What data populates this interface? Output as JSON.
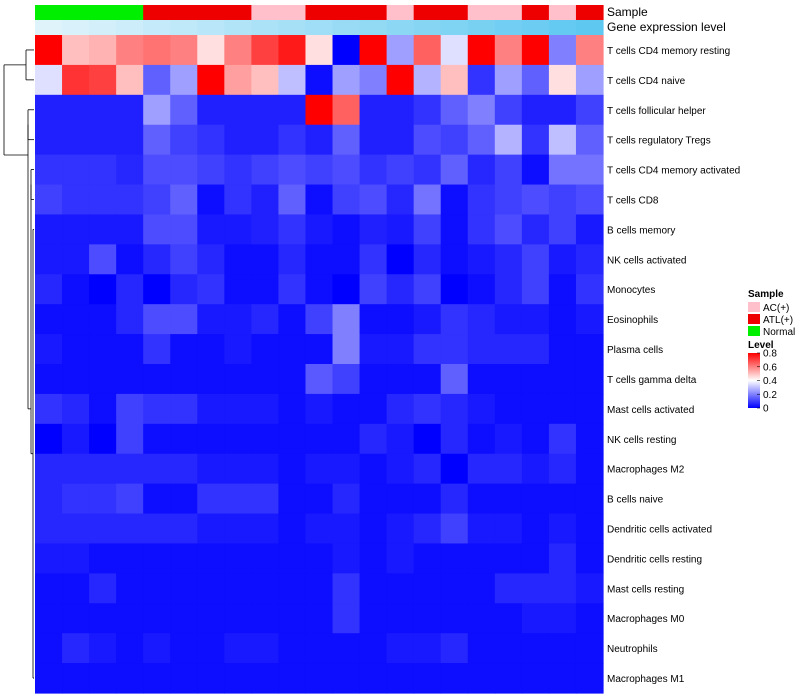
{
  "chart_data": {
    "type": "heatmap",
    "title": "",
    "colors": {
      "low": "#0000ff",
      "mid": "#ffffff",
      "high": "#ff0000",
      "sample": {
        "AC(+)": "#ffc0cb",
        "ATL(+)": "#ee0000",
        "Normal": "#00ee00"
      },
      "expr_low": "#dff3fb",
      "expr_high": "#5fc8f0"
    },
    "column_annotations": [
      {
        "name": "Sample",
        "values": [
          "Normal",
          "Normal",
          "Normal",
          "Normal",
          "ATL(+)",
          "ATL(+)",
          "ATL(+)",
          "ATL(+)",
          "AC(+)",
          "AC(+)",
          "ATL(+)",
          "ATL(+)",
          "ATL(+)",
          "AC(+)",
          "ATL(+)",
          "ATL(+)",
          "AC(+)",
          "AC(+)",
          "ATL(+)",
          "AC(+)",
          "ATL(+)"
        ]
      },
      {
        "name": "Gene expression level",
        "values": [
          0.0,
          0.05,
          0.1,
          0.15,
          0.2,
          0.25,
          0.3,
          0.35,
          0.4,
          0.45,
          0.5,
          0.55,
          0.6,
          0.65,
          0.7,
          0.75,
          0.8,
          0.85,
          0.9,
          0.95,
          1.0
        ]
      }
    ],
    "rows": [
      "T cells CD4 memory resting",
      "T cells CD4 naive",
      "T cells follicular helper",
      "T cells regulatory  Tregs",
      "T cells CD4 memory activated",
      "T cells CD8",
      "B cells memory",
      "NK cells activated",
      "Monocytes",
      "Eosinophils",
      "Plasma cells",
      "T cells gamma delta",
      "Mast cells activated",
      "NK cells resting",
      "Macrophages M2",
      "B cells naive",
      "Dendritic cells activated",
      "Dendritic cells resting",
      "Mast cells resting",
      "Macrophages M0",
      "Neutrophils",
      "Macrophages M1"
    ],
    "values": [
      [
        0.8,
        0.5,
        0.52,
        0.6,
        0.62,
        0.6,
        0.45,
        0.6,
        0.7,
        0.76,
        0.45,
        0.0,
        0.8,
        0.25,
        0.65,
        0.35,
        0.8,
        0.6,
        0.8,
        0.2,
        0.6
      ],
      [
        0.35,
        0.72,
        0.7,
        0.5,
        0.15,
        0.25,
        0.8,
        0.55,
        0.5,
        0.3,
        0.02,
        0.25,
        0.2,
        0.8,
        0.28,
        0.5,
        0.08,
        0.25,
        0.15,
        0.45,
        0.25
      ],
      [
        0.05,
        0.05,
        0.05,
        0.05,
        0.25,
        0.15,
        0.05,
        0.05,
        0.05,
        0.05,
        0.8,
        0.65,
        0.05,
        0.05,
        0.08,
        0.15,
        0.2,
        0.1,
        0.05,
        0.05,
        0.1
      ],
      [
        0.05,
        0.05,
        0.05,
        0.05,
        0.15,
        0.1,
        0.08,
        0.05,
        0.05,
        0.08,
        0.05,
        0.15,
        0.05,
        0.05,
        0.12,
        0.1,
        0.15,
        0.28,
        0.08,
        0.3,
        0.15
      ],
      [
        0.08,
        0.08,
        0.08,
        0.06,
        0.12,
        0.12,
        0.1,
        0.08,
        0.1,
        0.12,
        0.1,
        0.12,
        0.08,
        0.1,
        0.08,
        0.15,
        0.06,
        0.1,
        0.02,
        0.18,
        0.18
      ],
      [
        0.1,
        0.08,
        0.08,
        0.08,
        0.1,
        0.15,
        0.02,
        0.08,
        0.05,
        0.15,
        0.02,
        0.1,
        0.12,
        0.06,
        0.18,
        0.02,
        0.08,
        0.1,
        0.12,
        0.1,
        0.12
      ],
      [
        0.04,
        0.04,
        0.04,
        0.04,
        0.12,
        0.12,
        0.04,
        0.04,
        0.05,
        0.08,
        0.04,
        0.02,
        0.05,
        0.04,
        0.1,
        0.02,
        0.08,
        0.12,
        0.06,
        0.1,
        0.04
      ],
      [
        0.04,
        0.04,
        0.12,
        0.02,
        0.06,
        0.1,
        0.06,
        0.02,
        0.02,
        0.06,
        0.02,
        0.02,
        0.08,
        0.0,
        0.06,
        0.02,
        0.04,
        0.06,
        0.1,
        0.04,
        0.06
      ],
      [
        0.06,
        0.02,
        0.0,
        0.06,
        0.0,
        0.06,
        0.08,
        0.02,
        0.02,
        0.08,
        0.02,
        0.0,
        0.1,
        0.06,
        0.1,
        0.0,
        0.02,
        0.06,
        0.1,
        0.02,
        0.08
      ],
      [
        0.02,
        0.02,
        0.02,
        0.06,
        0.12,
        0.12,
        0.04,
        0.04,
        0.06,
        0.02,
        0.1,
        0.2,
        0.02,
        0.02,
        0.04,
        0.08,
        0.06,
        0.04,
        0.04,
        0.02,
        0.04
      ],
      [
        0.04,
        0.02,
        0.02,
        0.02,
        0.08,
        0.02,
        0.02,
        0.04,
        0.02,
        0.02,
        0.02,
        0.2,
        0.04,
        0.04,
        0.08,
        0.08,
        0.06,
        0.06,
        0.06,
        0.02,
        0.02
      ],
      [
        0.02,
        0.02,
        0.02,
        0.02,
        0.02,
        0.02,
        0.02,
        0.02,
        0.02,
        0.02,
        0.14,
        0.1,
        0.02,
        0.02,
        0.02,
        0.15,
        0.02,
        0.02,
        0.02,
        0.02,
        0.02
      ],
      [
        0.08,
        0.06,
        0.02,
        0.1,
        0.08,
        0.08,
        0.04,
        0.04,
        0.04,
        0.02,
        0.04,
        0.02,
        0.02,
        0.06,
        0.08,
        0.06,
        0.04,
        0.02,
        0.02,
        0.02,
        0.02
      ],
      [
        0.0,
        0.04,
        0.0,
        0.1,
        0.02,
        0.02,
        0.02,
        0.02,
        0.02,
        0.02,
        0.02,
        0.02,
        0.06,
        0.04,
        0.0,
        0.06,
        0.02,
        0.04,
        0.02,
        0.08,
        0.02
      ],
      [
        0.06,
        0.06,
        0.06,
        0.06,
        0.06,
        0.06,
        0.04,
        0.04,
        0.04,
        0.02,
        0.04,
        0.04,
        0.02,
        0.04,
        0.06,
        0.0,
        0.06,
        0.06,
        0.04,
        0.06,
        0.02
      ],
      [
        0.06,
        0.08,
        0.08,
        0.1,
        0.02,
        0.02,
        0.08,
        0.08,
        0.08,
        0.02,
        0.02,
        0.06,
        0.02,
        0.02,
        0.02,
        0.06,
        0.02,
        0.02,
        0.02,
        0.02,
        0.02
      ],
      [
        0.06,
        0.06,
        0.06,
        0.06,
        0.06,
        0.06,
        0.04,
        0.04,
        0.04,
        0.02,
        0.04,
        0.04,
        0.02,
        0.04,
        0.06,
        0.1,
        0.04,
        0.04,
        0.02,
        0.04,
        0.02
      ],
      [
        0.04,
        0.04,
        0.02,
        0.02,
        0.02,
        0.02,
        0.02,
        0.02,
        0.02,
        0.02,
        0.02,
        0.04,
        0.02,
        0.04,
        0.02,
        0.02,
        0.02,
        0.02,
        0.02,
        0.06,
        0.02
      ],
      [
        0.02,
        0.02,
        0.06,
        0.02,
        0.02,
        0.02,
        0.02,
        0.02,
        0.02,
        0.02,
        0.02,
        0.08,
        0.02,
        0.02,
        0.02,
        0.02,
        0.02,
        0.06,
        0.06,
        0.06,
        0.04
      ],
      [
        0.02,
        0.02,
        0.02,
        0.02,
        0.02,
        0.02,
        0.02,
        0.02,
        0.02,
        0.02,
        0.02,
        0.08,
        0.02,
        0.02,
        0.02,
        0.02,
        0.02,
        0.02,
        0.04,
        0.04,
        0.02
      ],
      [
        0.02,
        0.06,
        0.04,
        0.02,
        0.04,
        0.02,
        0.02,
        0.04,
        0.04,
        0.02,
        0.02,
        0.02,
        0.02,
        0.04,
        0.04,
        0.06,
        0.02,
        0.02,
        0.02,
        0.02,
        0.02
      ],
      [
        0.02,
        0.02,
        0.02,
        0.02,
        0.02,
        0.02,
        0.02,
        0.02,
        0.02,
        0.02,
        0.02,
        0.02,
        0.02,
        0.02,
        0.02,
        0.02,
        0.02,
        0.02,
        0.02,
        0.02,
        0.02
      ]
    ],
    "legend": {
      "sample_title": "Sample",
      "sample_entries": [
        "AC(+)",
        "ATL(+)",
        "Normal"
      ],
      "level_title": "Level",
      "level_ticks": [
        "0.8",
        "0.6",
        "0.4",
        "0.2",
        "0"
      ],
      "level_range": [
        0,
        0.8
      ]
    },
    "legend_placement": "right",
    "row_dendrogram": "left"
  }
}
